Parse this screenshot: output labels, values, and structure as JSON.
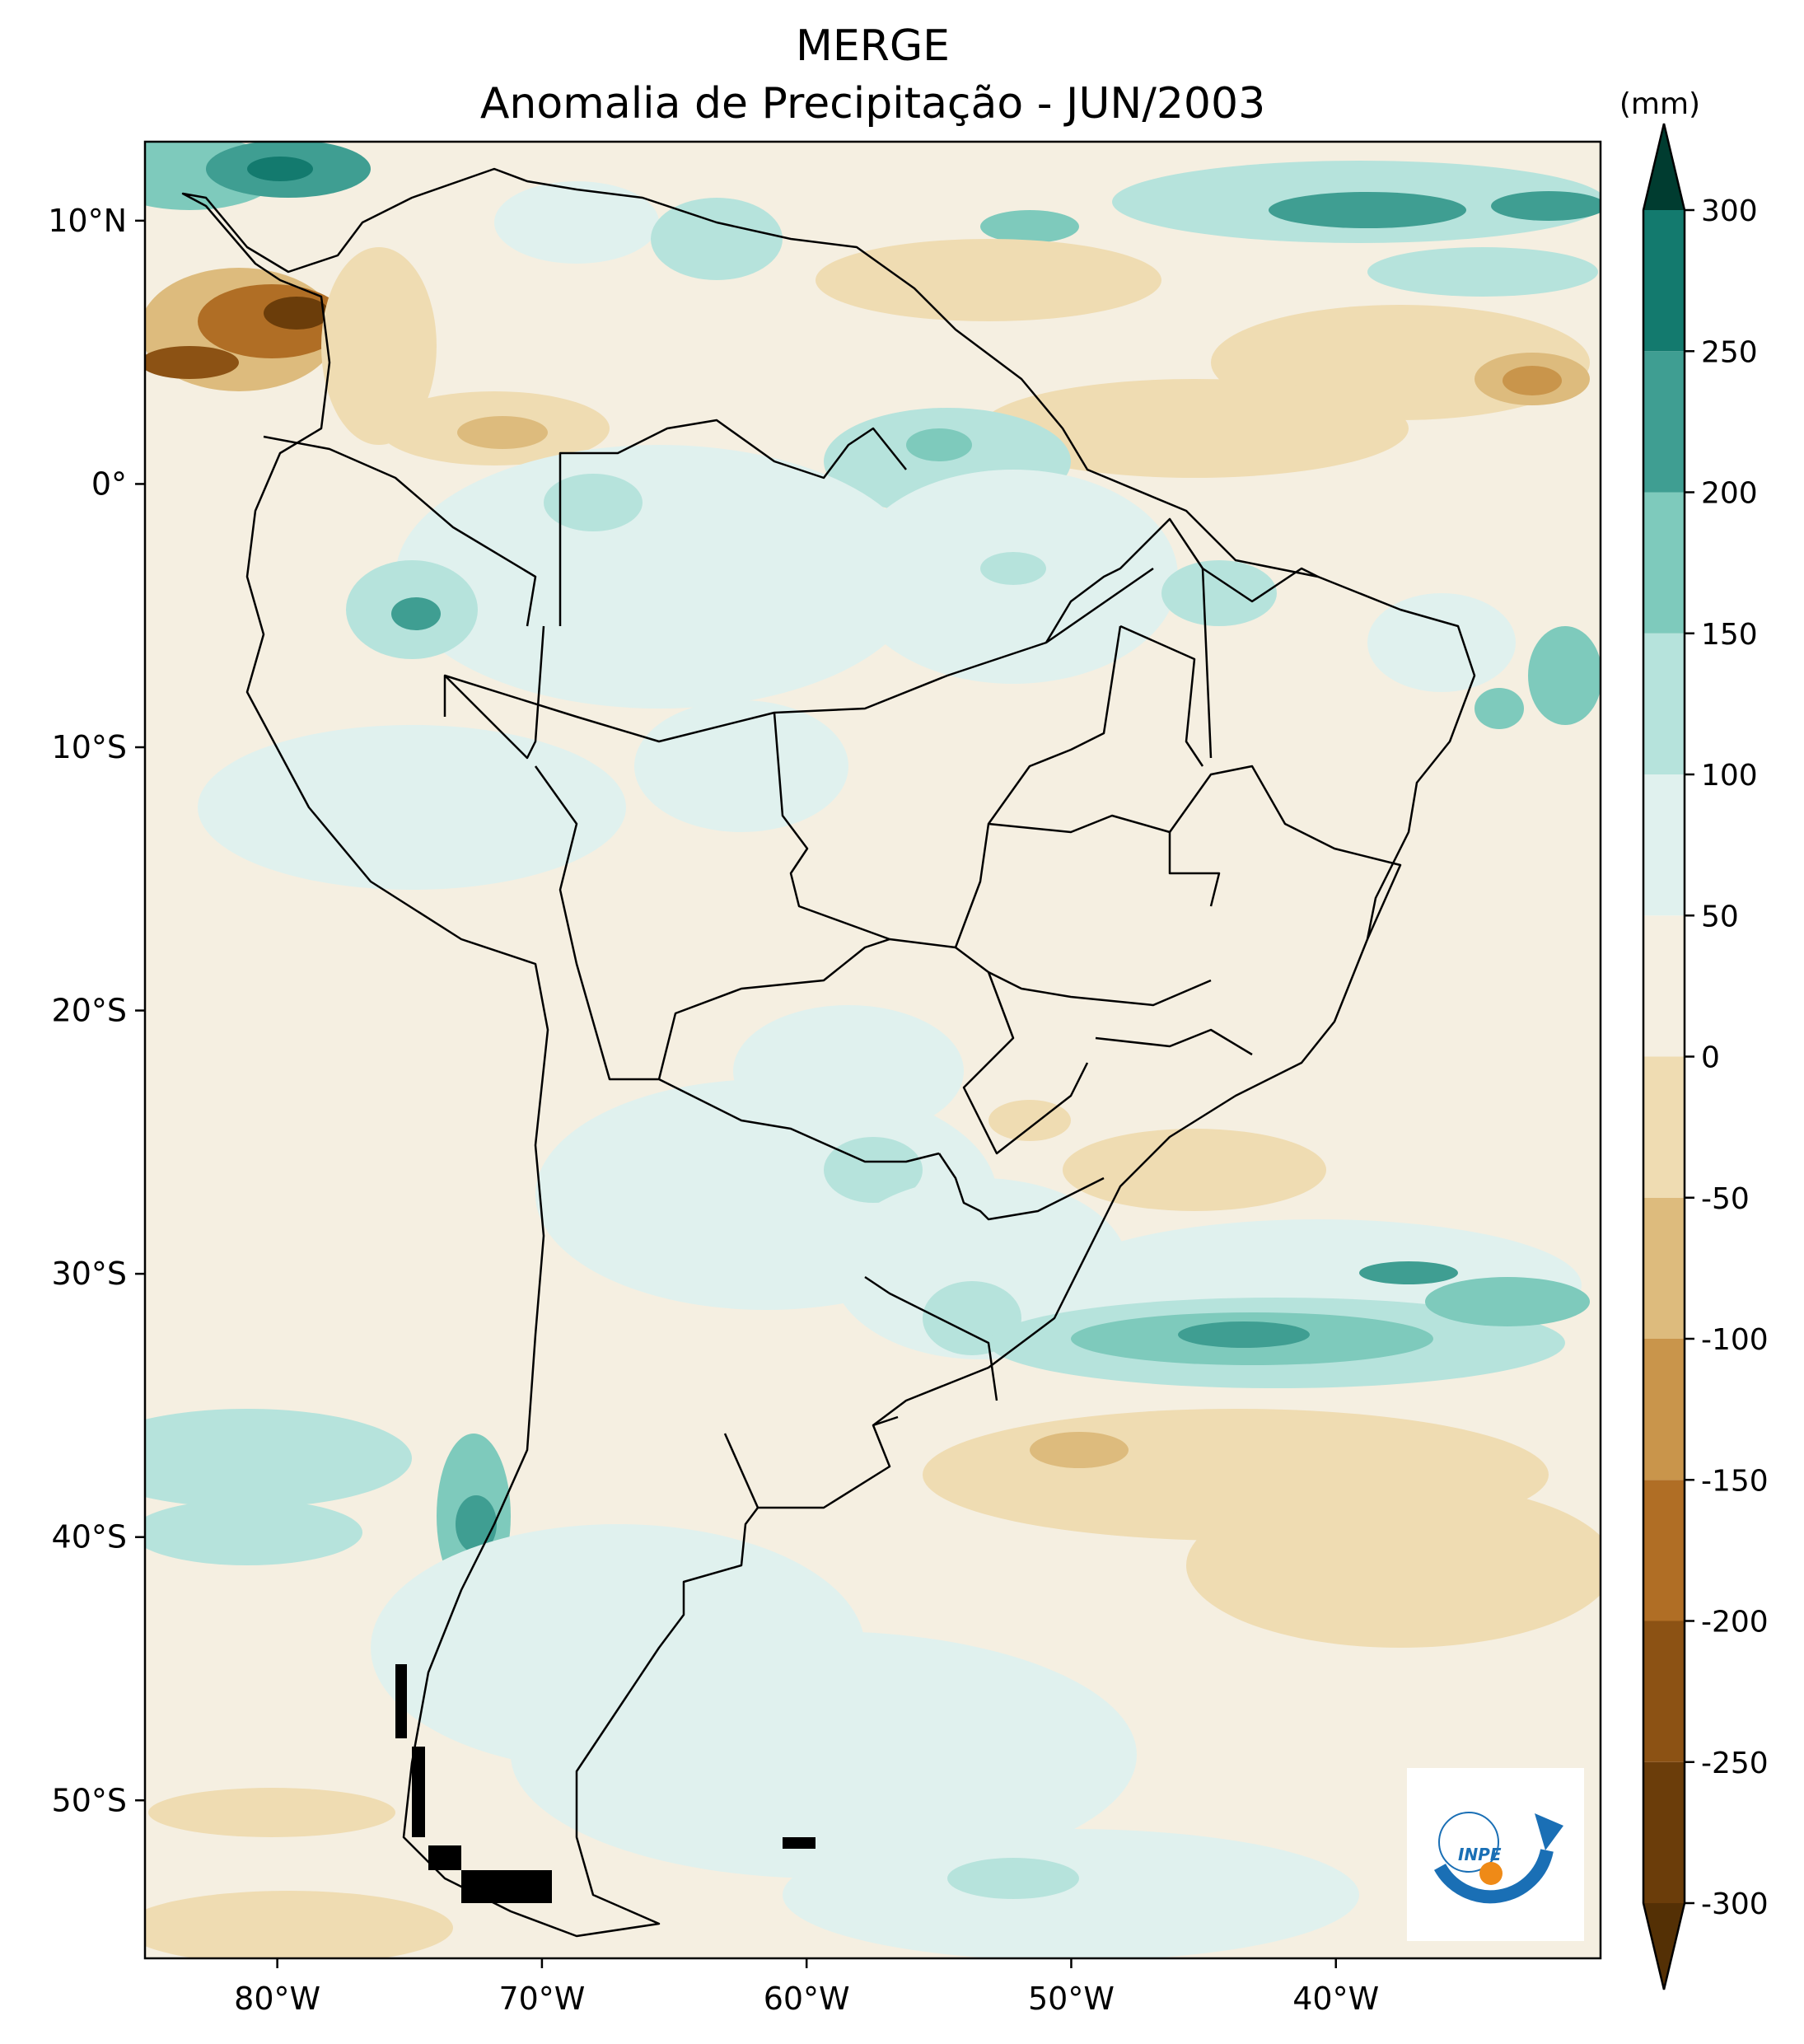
{
  "title": "MERGE",
  "subtitle": "Anomalia de Precipitação - JUN/2003",
  "units_label": "(mm)",
  "logo_text": "INPE",
  "map": {
    "lon_range": [
      -85,
      -30
    ],
    "lat_range": [
      -56,
      13
    ],
    "lon_ticks": [
      {
        "value": -80,
        "label": "80°W"
      },
      {
        "value": -70,
        "label": "70°W"
      },
      {
        "value": -60,
        "label": "60°W"
      },
      {
        "value": -50,
        "label": "50°W"
      },
      {
        "value": -40,
        "label": "40°W"
      }
    ],
    "lat_ticks": [
      {
        "value": 10,
        "label": "10°N"
      },
      {
        "value": 0,
        "label": "0°"
      },
      {
        "value": -10,
        "label": "10°S"
      },
      {
        "value": -20,
        "label": "20°S"
      },
      {
        "value": -30,
        "label": "30°S"
      },
      {
        "value": -40,
        "label": "40°S"
      },
      {
        "value": -50,
        "label": "50°S"
      }
    ]
  },
  "colorbar": {
    "levels": [
      -300,
      -250,
      -200,
      -150,
      -100,
      -50,
      0,
      50,
      100,
      150,
      200,
      250,
      300
    ],
    "labels": [
      "-300",
      "-250",
      "-200",
      "-150",
      "-100",
      "-50",
      "0",
      "50",
      "100",
      "150",
      "200",
      "250",
      "300"
    ],
    "bin_colors": [
      "#6b3d0a",
      "#8c5214",
      "#b06e25",
      "#c9954b",
      "#ddbb7d",
      "#efdcb2",
      "#f5efe1",
      "#e0f1ee",
      "#b6e3dc",
      "#7ecabc",
      "#3f9e92",
      "#137a6e"
    ],
    "under_color": "#543005",
    "over_color": "#003c30",
    "extend": "both"
  }
}
